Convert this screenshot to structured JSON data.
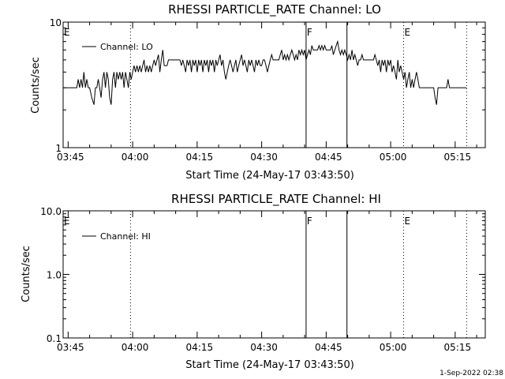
{
  "footer": {
    "timestamp": "1-Sep-2022 02:38"
  },
  "chart_data": [
    {
      "type": "line",
      "title": "RHESSI PARTICLE_RATE Channel: LO",
      "xlabel": "Start Time (24-May-17 03:43:50)",
      "ylabel": "Counts/sec",
      "yscale": "log",
      "ylim": [
        1,
        10
      ],
      "xlim": [
        "03:43:50",
        "05:22:00"
      ],
      "x_ticks": [
        "03:45",
        "04:00",
        "04:15",
        "04:30",
        "04:45",
        "05:00",
        "05:15"
      ],
      "y_ticks": [
        "1",
        "10"
      ],
      "legend": {
        "position": "top-left",
        "entries": [
          "Channel: LO"
        ]
      },
      "markers": [
        {
          "label": "E",
          "time": "03:43:50",
          "style": "dotted"
        },
        {
          "label": "",
          "time": "03:59:30",
          "style": "dotted"
        },
        {
          "label": "F",
          "time": "04:40:20",
          "style": "solid"
        },
        {
          "label": "",
          "time": "04:49:50",
          "style": "solid"
        },
        {
          "label": "E",
          "time": "05:03:00",
          "style": "dotted"
        },
        {
          "label": "",
          "time": "05:17:40",
          "style": "dotted"
        }
      ],
      "series": [
        {
          "name": "Channel: LO",
          "points": [
            [
              "03:43:50",
              3
            ],
            [
              "03:47:00",
              3
            ],
            [
              "03:47:20",
              3.5
            ],
            [
              "03:47:40",
              3
            ],
            [
              "03:48:00",
              3.5
            ],
            [
              "03:48:20",
              3
            ],
            [
              "03:48:40",
              4
            ],
            [
              "03:49:00",
              3
            ],
            [
              "03:49:20",
              3.5
            ],
            [
              "03:49:40",
              3
            ],
            [
              "03:50:00",
              3
            ],
            [
              "03:50:30",
              2.5
            ],
            [
              "03:51:00",
              2.2
            ],
            [
              "03:51:20",
              3
            ],
            [
              "03:51:40",
              3
            ],
            [
              "03:52:00",
              3.5
            ],
            [
              "03:52:20",
              3
            ],
            [
              "03:52:40",
              2.5
            ],
            [
              "03:53:00",
              3.5
            ],
            [
              "03:53:20",
              4
            ],
            [
              "03:53:40",
              3
            ],
            [
              "03:54:00",
              4
            ],
            [
              "03:54:20",
              3.5
            ],
            [
              "03:54:40",
              2.5
            ],
            [
              "03:55:00",
              2.2
            ],
            [
              "03:55:20",
              3.5
            ],
            [
              "03:55:40",
              4
            ],
            [
              "03:56:00",
              3
            ],
            [
              "03:56:20",
              4
            ],
            [
              "03:56:40",
              3.5
            ],
            [
              "03:57:00",
              4
            ],
            [
              "03:57:20",
              3.5
            ],
            [
              "03:57:40",
              4
            ],
            [
              "03:58:00",
              3
            ],
            [
              "03:58:20",
              4
            ],
            [
              "03:58:40",
              3.5
            ],
            [
              "03:59:00",
              3
            ],
            [
              "03:59:20",
              4
            ],
            [
              "03:59:40",
              3.5
            ],
            [
              "04:00:00",
              4
            ],
            [
              "04:00:20",
              4.5
            ],
            [
              "04:00:40",
              4
            ],
            [
              "04:01:00",
              4.5
            ],
            [
              "04:01:20",
              4
            ],
            [
              "04:01:40",
              4.5
            ],
            [
              "04:02:00",
              4
            ],
            [
              "04:02:20",
              4.5
            ],
            [
              "04:02:40",
              5
            ],
            [
              "04:03:00",
              4
            ],
            [
              "04:03:20",
              4.5
            ],
            [
              "04:03:40",
              4
            ],
            [
              "04:04:00",
              4.5
            ],
            [
              "04:04:20",
              4
            ],
            [
              "04:04:40",
              4.5
            ],
            [
              "04:05:00",
              5
            ],
            [
              "04:05:20",
              4.5
            ],
            [
              "04:05:40",
              5
            ],
            [
              "04:06:00",
              5.5
            ],
            [
              "04:06:20",
              4
            ],
            [
              "04:06:40",
              5
            ],
            [
              "04:07:00",
              6
            ],
            [
              "04:07:20",
              4.5
            ],
            [
              "04:07:40",
              4.5
            ],
            [
              "04:08:00",
              4.5
            ],
            [
              "04:08:20",
              5
            ],
            [
              "04:09:00",
              5
            ],
            [
              "04:10:00",
              5
            ],
            [
              "04:11:00",
              5
            ],
            [
              "04:11:20",
              4.5
            ],
            [
              "04:11:40",
              5
            ],
            [
              "04:12:00",
              4.5
            ],
            [
              "04:12:20",
              4
            ],
            [
              "04:12:40",
              5
            ],
            [
              "04:13:00",
              4.5
            ],
            [
              "04:13:20",
              5
            ],
            [
              "04:13:40",
              4
            ],
            [
              "04:14:00",
              5
            ],
            [
              "04:14:20",
              4.5
            ],
            [
              "04:14:40",
              5
            ],
            [
              "04:15:00",
              4
            ],
            [
              "04:15:20",
              5
            ],
            [
              "04:15:40",
              4.5
            ],
            [
              "04:16:00",
              5
            ],
            [
              "04:16:20",
              4
            ],
            [
              "04:16:40",
              5
            ],
            [
              "04:17:00",
              4.5
            ],
            [
              "04:17:20",
              5
            ],
            [
              "04:17:40",
              4
            ],
            [
              "04:18:00",
              5
            ],
            [
              "04:18:20",
              4.5
            ],
            [
              "04:18:40",
              5
            ],
            [
              "04:19:00",
              4
            ],
            [
              "04:19:20",
              5
            ],
            [
              "04:19:40",
              4.5
            ],
            [
              "04:20:00",
              5
            ],
            [
              "04:20:20",
              5.5
            ],
            [
              "04:20:40",
              4.5
            ],
            [
              "04:21:00",
              5
            ],
            [
              "04:21:20",
              4
            ],
            [
              "04:21:40",
              3.5
            ],
            [
              "04:22:00",
              4
            ],
            [
              "04:22:20",
              4.5
            ],
            [
              "04:22:40",
              5
            ],
            [
              "04:23:00",
              4.5
            ],
            [
              "04:23:20",
              4
            ],
            [
              "04:23:40",
              4.5
            ],
            [
              "04:24:00",
              5
            ],
            [
              "04:24:20",
              4
            ],
            [
              "04:24:40",
              4.5
            ],
            [
              "04:25:00",
              5
            ],
            [
              "04:25:20",
              5.5
            ],
            [
              "04:25:40",
              4.5
            ],
            [
              "04:26:00",
              5
            ],
            [
              "04:26:20",
              4.5
            ],
            [
              "04:26:40",
              4
            ],
            [
              "04:27:00",
              5
            ],
            [
              "04:27:20",
              4.5
            ],
            [
              "04:27:40",
              5
            ],
            [
              "04:28:00",
              4.5
            ],
            [
              "04:28:20",
              4
            ],
            [
              "04:28:40",
              5
            ],
            [
              "04:29:00",
              4.5
            ],
            [
              "04:29:20",
              5
            ],
            [
              "04:29:40",
              4.5
            ],
            [
              "04:30:00",
              4.5
            ],
            [
              "04:30:20",
              5
            ],
            [
              "04:30:40",
              5
            ],
            [
              "04:31:00",
              4.5
            ],
            [
              "04:31:20",
              4
            ],
            [
              "04:31:40",
              4.5
            ],
            [
              "04:32:00",
              5
            ],
            [
              "04:32:20",
              5.5
            ],
            [
              "04:32:40",
              5
            ],
            [
              "04:33:00",
              5
            ],
            [
              "04:34:00",
              5
            ],
            [
              "04:34:20",
              5.5
            ],
            [
              "04:34:40",
              6
            ],
            [
              "04:35:00",
              5
            ],
            [
              "04:35:20",
              5.5
            ],
            [
              "04:35:40",
              5
            ],
            [
              "04:36:00",
              5.5
            ],
            [
              "04:36:20",
              5
            ],
            [
              "04:36:40",
              5.5
            ],
            [
              "04:37:00",
              6
            ],
            [
              "04:37:20",
              5.5
            ],
            [
              "04:37:40",
              5
            ],
            [
              "04:38:00",
              5.5
            ],
            [
              "04:38:20",
              5
            ],
            [
              "04:38:40",
              6
            ],
            [
              "04:39:00",
              5.5
            ],
            [
              "04:39:20",
              6
            ],
            [
              "04:39:40",
              5.5
            ],
            [
              "04:40:00",
              6
            ],
            [
              "04:40:20",
              5
            ],
            [
              "04:40:40",
              5.5
            ],
            [
              "04:41:00",
              6
            ],
            [
              "04:41:20",
              5.5
            ],
            [
              "04:41:40",
              6.5
            ],
            [
              "04:42:00",
              6
            ],
            [
              "04:43:00",
              6
            ],
            [
              "04:43:20",
              6.5
            ],
            [
              "04:43:40",
              6
            ],
            [
              "04:44:00",
              6.5
            ],
            [
              "04:44:20",
              6
            ],
            [
              "04:44:40",
              6.5
            ],
            [
              "04:45:00",
              6
            ],
            [
              "04:46:00",
              6
            ],
            [
              "04:46:20",
              6.5
            ],
            [
              "04:46:40",
              5.5
            ],
            [
              "04:47:00",
              6
            ],
            [
              "04:47:20",
              6.5
            ],
            [
              "04:47:40",
              7
            ],
            [
              "04:48:00",
              6
            ],
            [
              "04:48:20",
              5.5
            ],
            [
              "04:48:40",
              6
            ],
            [
              "04:49:00",
              5.5
            ],
            [
              "04:49:20",
              6
            ],
            [
              "04:49:40",
              5.5
            ],
            [
              "04:50:00",
              5
            ],
            [
              "04:50:20",
              5.5
            ],
            [
              "04:50:40",
              5
            ],
            [
              "04:51:00",
              6
            ],
            [
              "04:51:20",
              5
            ],
            [
              "04:51:40",
              5.5
            ],
            [
              "04:52:00",
              5
            ],
            [
              "04:52:20",
              4.5
            ],
            [
              "04:52:40",
              5
            ],
            [
              "04:53:00",
              5
            ],
            [
              "04:53:20",
              5.5
            ],
            [
              "04:53:40",
              5
            ],
            [
              "04:54:00",
              5
            ],
            [
              "04:55:00",
              5
            ],
            [
              "04:56:00",
              5
            ],
            [
              "04:56:20",
              5.5
            ],
            [
              "04:56:40",
              5
            ],
            [
              "04:57:00",
              4.5
            ],
            [
              "04:57:20",
              5
            ],
            [
              "04:57:40",
              4
            ],
            [
              "04:58:00",
              5
            ],
            [
              "04:58:20",
              4.5
            ],
            [
              "04:58:40",
              5
            ],
            [
              "04:59:00",
              4
            ],
            [
              "04:59:20",
              5
            ],
            [
              "04:59:40",
              4.5
            ],
            [
              "05:00:00",
              5
            ],
            [
              "05:00:20",
              4
            ],
            [
              "05:00:40",
              4.5
            ],
            [
              "05:01:00",
              4
            ],
            [
              "05:01:20",
              3.5
            ],
            [
              "05:01:40",
              5
            ],
            [
              "05:02:00",
              4
            ],
            [
              "05:02:20",
              4.5
            ],
            [
              "05:02:40",
              4
            ],
            [
              "05:03:00",
              3.5
            ],
            [
              "05:03:20",
              4
            ],
            [
              "05:03:40",
              3
            ],
            [
              "05:04:00",
              3.5
            ],
            [
              "05:04:20",
              4
            ],
            [
              "05:04:40",
              3
            ],
            [
              "05:05:00",
              3.5
            ],
            [
              "05:05:20",
              3
            ],
            [
              "05:05:40",
              3.5
            ],
            [
              "05:06:00",
              4
            ],
            [
              "05:06:20",
              3.5
            ],
            [
              "05:06:40",
              3
            ],
            [
              "05:07:00",
              3
            ],
            [
              "05:10:00",
              3
            ],
            [
              "05:10:20",
              2.5
            ],
            [
              "05:10:40",
              2.2
            ],
            [
              "05:11:00",
              3
            ],
            [
              "05:13:00",
              3
            ],
            [
              "05:13:20",
              3.5
            ],
            [
              "05:13:40",
              3
            ],
            [
              "05:17:40",
              3
            ]
          ]
        }
      ]
    },
    {
      "type": "line",
      "title": "RHESSI PARTICLE_RATE Channel: HI",
      "xlabel": "Start Time (24-May-17 03:43:50)",
      "ylabel": "Counts/sec",
      "yscale": "log",
      "ylim": [
        0.1,
        10
      ],
      "xlim": [
        "03:43:50",
        "05:22:00"
      ],
      "x_ticks": [
        "03:45",
        "04:00",
        "04:15",
        "04:30",
        "04:45",
        "05:00",
        "05:15"
      ],
      "y_ticks": [
        "0.1",
        "1.0",
        "10.0"
      ],
      "legend": {
        "position": "top-left",
        "entries": [
          "Channel: HI"
        ]
      },
      "markers": [
        {
          "label": "E",
          "time": "03:43:50",
          "style": "dotted"
        },
        {
          "label": "",
          "time": "03:59:30",
          "style": "dotted"
        },
        {
          "label": "F",
          "time": "04:40:20",
          "style": "solid"
        },
        {
          "label": "",
          "time": "04:49:50",
          "style": "solid"
        },
        {
          "label": "E",
          "time": "05:03:00",
          "style": "dotted"
        },
        {
          "label": "",
          "time": "05:17:40",
          "style": "dotted"
        }
      ],
      "series": [
        {
          "name": "Channel: HI",
          "points": []
        }
      ]
    }
  ]
}
